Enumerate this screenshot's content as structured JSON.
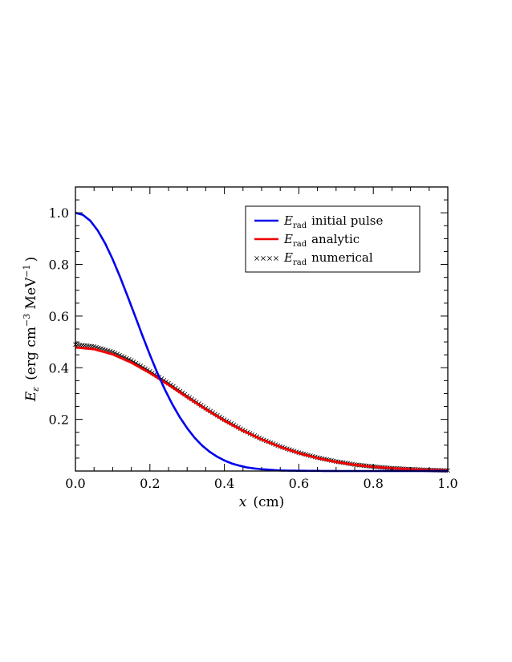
{
  "chart_data": {
    "type": "line",
    "xlabel_var": "x",
    "xlabel_unit": "(cm)",
    "ylabel_var": "E",
    "ylabel_sub": "ε",
    "ylabel_unit": "(erg cm",
    "ylabel_unit_exp1": "−3",
    "ylabel_unit_mid": " MeV",
    "ylabel_unit_exp2": "−1",
    "ylabel_unit_end": ")",
    "xlim": [
      0.0,
      1.0
    ],
    "ylim": [
      0.0,
      1.1
    ],
    "xticks": [
      "0.0",
      "0.2",
      "0.4",
      "0.6",
      "0.8",
      "1.0"
    ],
    "yticks": [
      "0.2",
      "0.4",
      "0.6",
      "0.8",
      "1.0"
    ],
    "legend_position": "top-right",
    "series": [
      {
        "name": "initial pulse",
        "symbol": "E",
        "subscript": "rad",
        "style": "line",
        "color": "#0000ee",
        "x": [
          0.0,
          0.02,
          0.04,
          0.06,
          0.08,
          0.1,
          0.12,
          0.14,
          0.16,
          0.18,
          0.2,
          0.22,
          0.24,
          0.26,
          0.28,
          0.3,
          0.32,
          0.34,
          0.36,
          0.38,
          0.4,
          0.42,
          0.44,
          0.46,
          0.48,
          0.5,
          0.55,
          0.6,
          0.7,
          0.8,
          0.9,
          1.0
        ],
        "y": [
          1.0,
          0.992,
          0.969,
          0.931,
          0.881,
          0.82,
          0.751,
          0.677,
          0.601,
          0.524,
          0.45,
          0.38,
          0.316,
          0.259,
          0.209,
          0.166,
          0.129,
          0.099,
          0.075,
          0.056,
          0.041,
          0.029,
          0.021,
          0.014,
          0.01,
          0.007,
          0.002,
          0.001,
          0.0,
          0.0,
          0.0,
          0.0
        ]
      },
      {
        "name": "analytic",
        "symbol": "E",
        "subscript": "rad",
        "style": "line",
        "color": "#ee0000",
        "x": [
          0.0,
          0.05,
          0.1,
          0.15,
          0.2,
          0.25,
          0.3,
          0.35,
          0.4,
          0.45,
          0.5,
          0.55,
          0.6,
          0.65,
          0.7,
          0.75,
          0.8,
          0.85,
          0.9,
          0.95,
          1.0
        ],
        "y": [
          0.479,
          0.472,
          0.452,
          0.42,
          0.38,
          0.334,
          0.286,
          0.239,
          0.195,
          0.156,
          0.122,
          0.093,
          0.069,
          0.05,
          0.035,
          0.024,
          0.016,
          0.011,
          0.007,
          0.004,
          0.002
        ]
      },
      {
        "name": "numerical",
        "symbol": "E",
        "subscript": "rad",
        "style": "markers",
        "color": "#000000",
        "x": [
          0.0,
          0.05,
          0.1,
          0.15,
          0.2,
          0.25,
          0.3,
          0.35,
          0.4,
          0.45,
          0.5,
          0.55,
          0.6,
          0.65,
          0.7,
          0.75,
          0.8,
          0.85,
          0.9,
          0.95,
          1.0
        ],
        "y": [
          0.49,
          0.482,
          0.461,
          0.428,
          0.386,
          0.34,
          0.291,
          0.243,
          0.199,
          0.159,
          0.124,
          0.095,
          0.071,
          0.052,
          0.037,
          0.025,
          0.017,
          0.011,
          0.007,
          0.004,
          0.002
        ]
      }
    ]
  }
}
